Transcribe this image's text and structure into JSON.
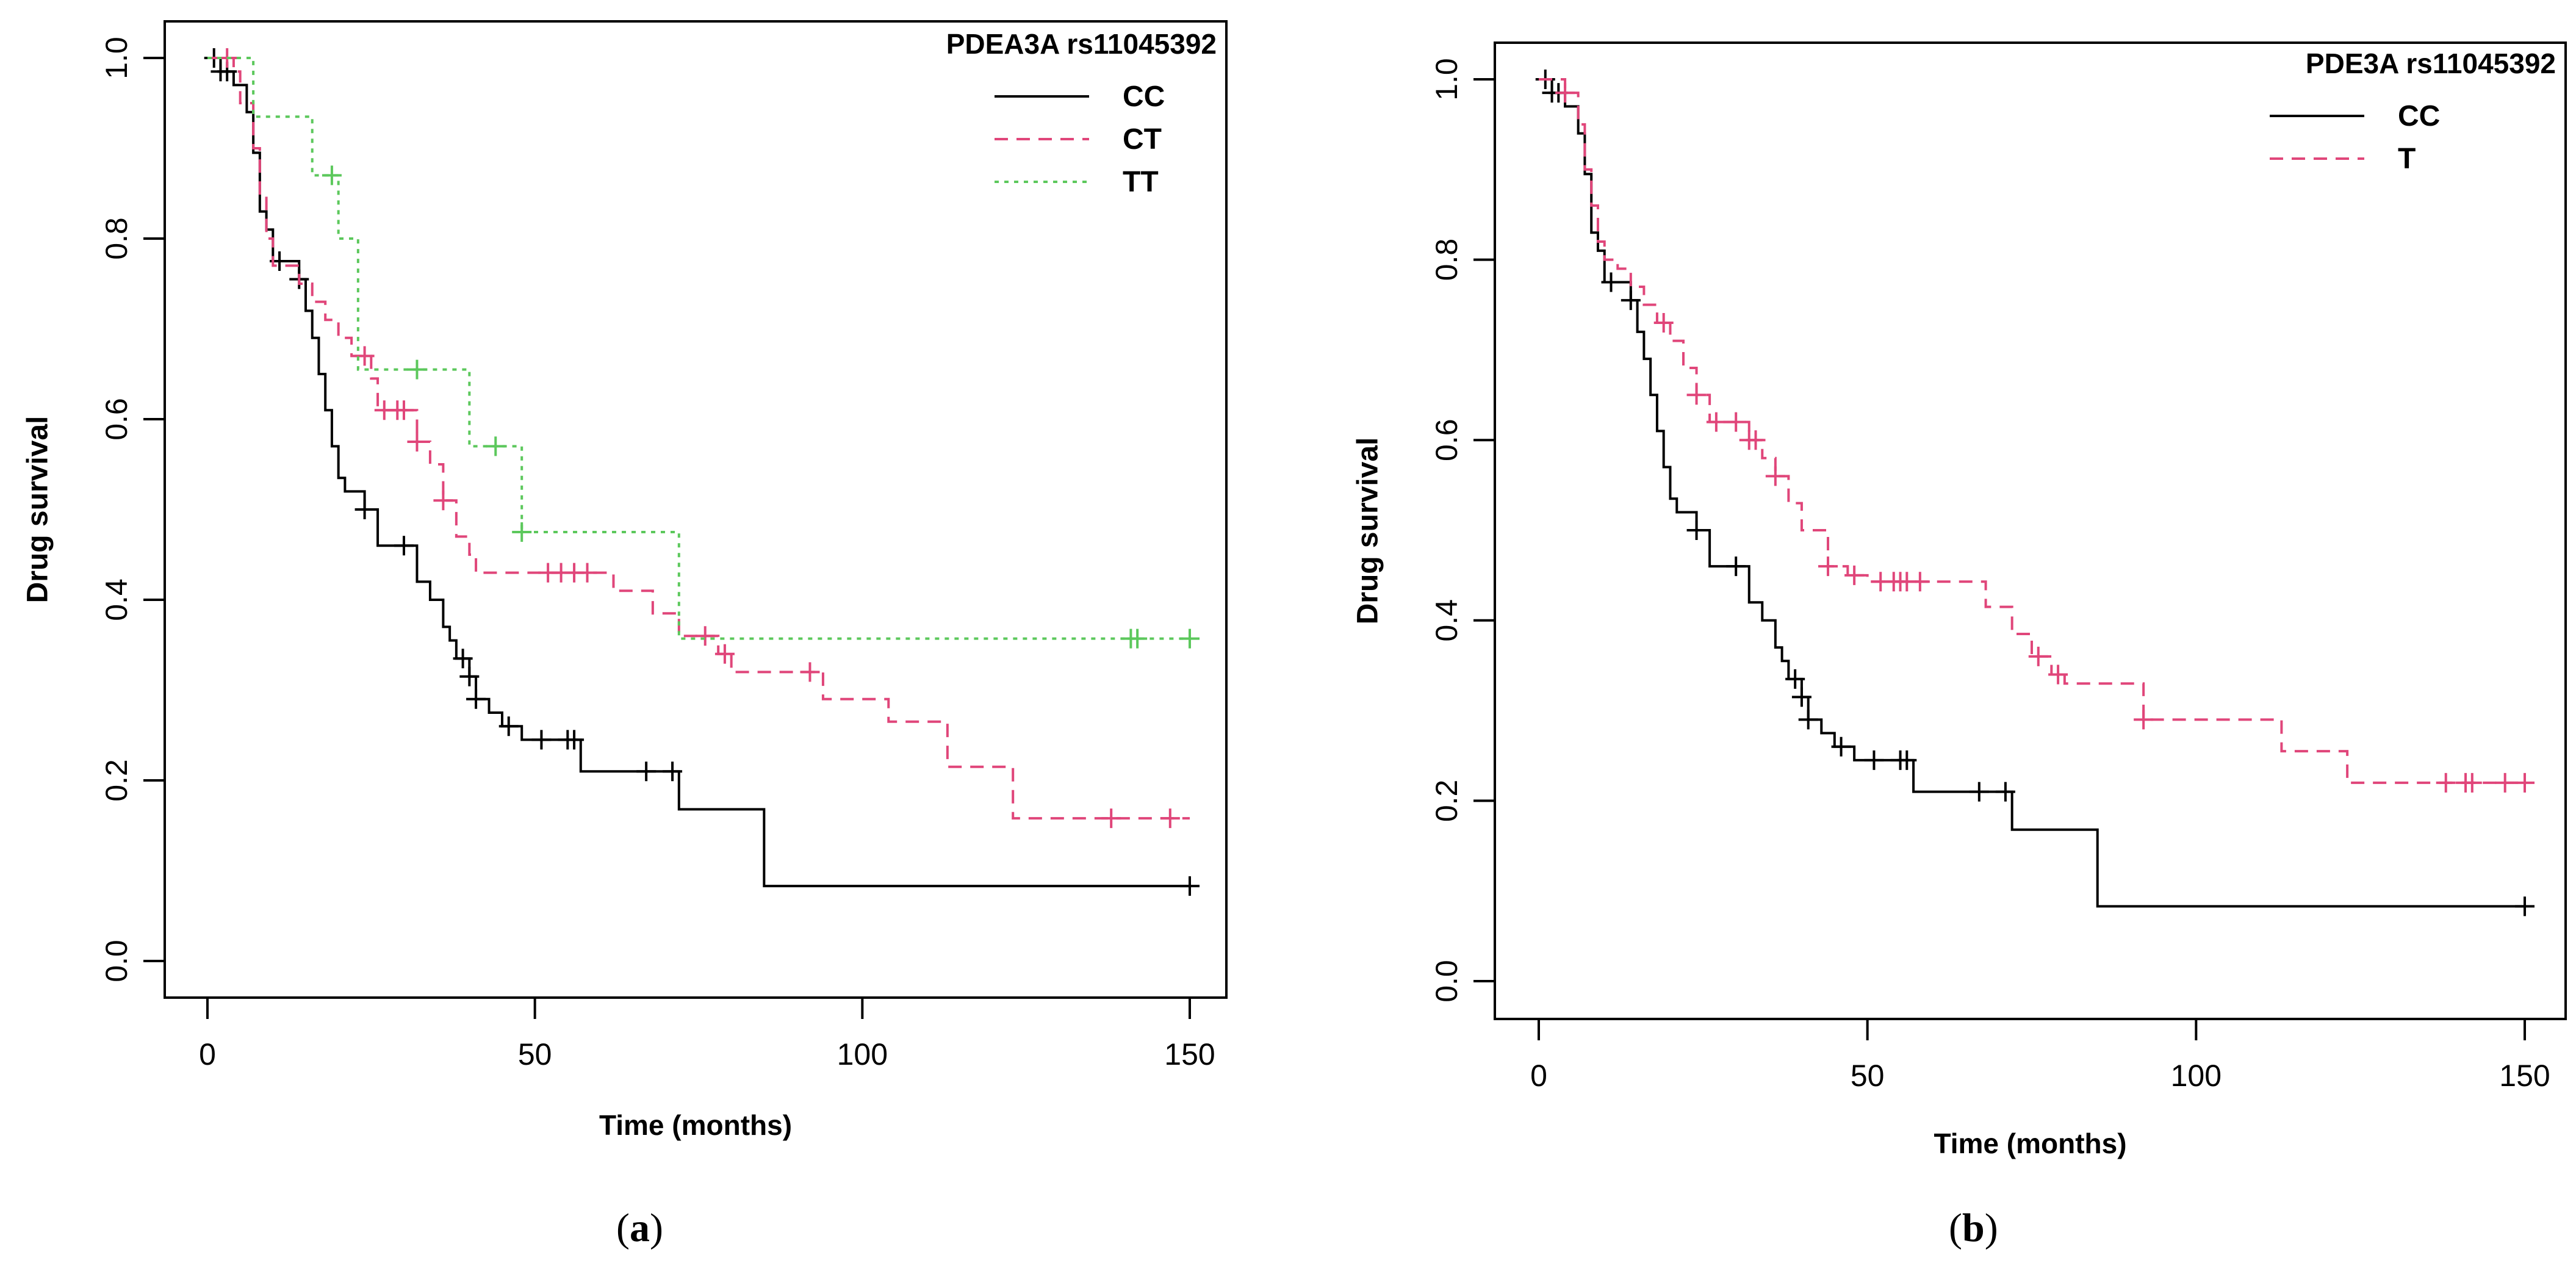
{
  "chart_data": [
    {
      "type": "line",
      "subtype": "kaplan-meier",
      "panel_label": "a",
      "title": "",
      "legend_title": "PDEA3A rs11045392",
      "legend_position": "top-right",
      "xlabel": "Time (months)",
      "ylabel": "Drug survival",
      "xlim": [
        0,
        150
      ],
      "ylim": [
        0,
        1
      ],
      "xticks": [
        0,
        50,
        100,
        150
      ],
      "yticks": [
        0.0,
        0.2,
        0.4,
        0.6,
        0.8,
        1.0
      ],
      "xtick_labels": [
        "0",
        "50",
        "100",
        "150"
      ],
      "ytick_labels": [
        "0.0",
        "0.2",
        "0.4",
        "0.6",
        "0.8",
        "1.0"
      ],
      "series": [
        {
          "name": "CC",
          "color": "#000000",
          "dash": "solid",
          "x": [
            0,
            2,
            4,
            6,
            7,
            8,
            9,
            10,
            14,
            15,
            16,
            17,
            18,
            19,
            20,
            21,
            24,
            26,
            32,
            34,
            36,
            37,
            38,
            40,
            41,
            43,
            45,
            48,
            50,
            57,
            72,
            85,
            150
          ],
          "y": [
            1.0,
            0.985,
            0.97,
            0.94,
            0.895,
            0.83,
            0.81,
            0.775,
            0.755,
            0.72,
            0.69,
            0.65,
            0.61,
            0.57,
            0.535,
            0.52,
            0.5,
            0.46,
            0.42,
            0.4,
            0.37,
            0.355,
            0.335,
            0.315,
            0.29,
            0.275,
            0.26,
            0.245,
            0.245,
            0.21,
            0.168,
            0.083,
            0.083
          ],
          "censor_x": [
            1,
            2,
            3,
            11,
            14,
            24,
            30,
            39,
            40,
            41,
            46,
            51,
            55,
            56,
            67,
            71,
            150
          ]
        },
        {
          "name": "CT",
          "color": "#E0467A",
          "dash": "dashed",
          "x": [
            0,
            4,
            5,
            7,
            8,
            9,
            10,
            14,
            16,
            18,
            20,
            22,
            25,
            26,
            32,
            34,
            36,
            38,
            40,
            41,
            57,
            62,
            68,
            72,
            75,
            78,
            80,
            90,
            94,
            104,
            113,
            123,
            150
          ],
          "y": [
            1.0,
            0.985,
            0.95,
            0.9,
            0.85,
            0.8,
            0.77,
            0.75,
            0.73,
            0.71,
            0.69,
            0.67,
            0.645,
            0.61,
            0.575,
            0.55,
            0.51,
            0.47,
            0.45,
            0.43,
            0.43,
            0.41,
            0.385,
            0.36,
            0.36,
            0.34,
            0.32,
            0.32,
            0.29,
            0.265,
            0.215,
            0.158,
            0.158
          ],
          "censor_x": [
            3,
            24,
            27,
            29,
            30,
            32,
            36,
            52,
            54,
            56,
            58,
            76,
            79,
            92,
            138,
            147
          ]
        },
        {
          "name": "TT",
          "color": "#5CC85C",
          "dash": "dotted",
          "x": [
            0,
            7,
            16,
            20,
            23,
            40,
            48,
            72,
            150
          ],
          "y": [
            1.0,
            0.935,
            0.87,
            0.8,
            0.655,
            0.57,
            0.475,
            0.357,
            0.357
          ],
          "censor_x": [
            19,
            32,
            44,
            48,
            141,
            142,
            150
          ]
        }
      ]
    },
    {
      "type": "line",
      "subtype": "kaplan-meier",
      "panel_label": "b",
      "title": "",
      "legend_title": "PDE3A rs11045392",
      "legend_position": "top-right",
      "xlabel": "Time (months)",
      "ylabel": "Drug survival",
      "xlim": [
        0,
        150
      ],
      "ylim": [
        0,
        1
      ],
      "xticks": [
        0,
        50,
        100,
        150
      ],
      "yticks": [
        0.0,
        0.2,
        0.4,
        0.6,
        0.8,
        1.0
      ],
      "xtick_labels": [
        "0",
        "50",
        "100",
        "150"
      ],
      "ytick_labels": [
        "0.0",
        "0.2",
        "0.4",
        "0.6",
        "0.8",
        "1.0"
      ],
      "series": [
        {
          "name": "CC",
          "color": "#000000",
          "dash": "solid",
          "x": [
            0,
            2,
            4,
            6,
            7,
            8,
            9,
            10,
            14,
            15,
            16,
            17,
            18,
            19,
            20,
            21,
            24,
            26,
            32,
            34,
            36,
            37,
            38,
            40,
            41,
            43,
            45,
            48,
            50,
            57,
            72,
            85,
            150
          ],
          "y": [
            1.0,
            0.985,
            0.97,
            0.94,
            0.895,
            0.83,
            0.81,
            0.775,
            0.755,
            0.72,
            0.69,
            0.65,
            0.61,
            0.57,
            0.535,
            0.52,
            0.5,
            0.46,
            0.42,
            0.4,
            0.37,
            0.355,
            0.335,
            0.315,
            0.29,
            0.275,
            0.26,
            0.245,
            0.245,
            0.21,
            0.168,
            0.083,
            0.083
          ],
          "censor_x": [
            1,
            2,
            3,
            11,
            14,
            24,
            30,
            39,
            40,
            41,
            46,
            51,
            55,
            56,
            67,
            71,
            150
          ]
        },
        {
          "name": "T",
          "color": "#E0467A",
          "dash": "dashed",
          "x": [
            0,
            4,
            6,
            7,
            8,
            9,
            10,
            12,
            14,
            16,
            18,
            20,
            22,
            24,
            26,
            32,
            34,
            36,
            38,
            40,
            44,
            47,
            50,
            68,
            72,
            75,
            78,
            80,
            92,
            113,
            123,
            150
          ],
          "y": [
            1.0,
            0.985,
            0.95,
            0.9,
            0.86,
            0.82,
            0.8,
            0.79,
            0.77,
            0.75,
            0.73,
            0.71,
            0.68,
            0.65,
            0.62,
            0.6,
            0.58,
            0.56,
            0.53,
            0.5,
            0.46,
            0.45,
            0.443,
            0.415,
            0.385,
            0.36,
            0.34,
            0.33,
            0.29,
            0.255,
            0.22,
            0.22
          ],
          "censor_x": [
            4,
            19,
            24,
            27,
            30,
            32,
            33,
            36,
            44,
            48,
            52,
            54,
            55,
            56,
            58,
            76,
            79,
            92,
            138,
            141,
            142,
            147,
            150
          ]
        }
      ]
    }
  ]
}
